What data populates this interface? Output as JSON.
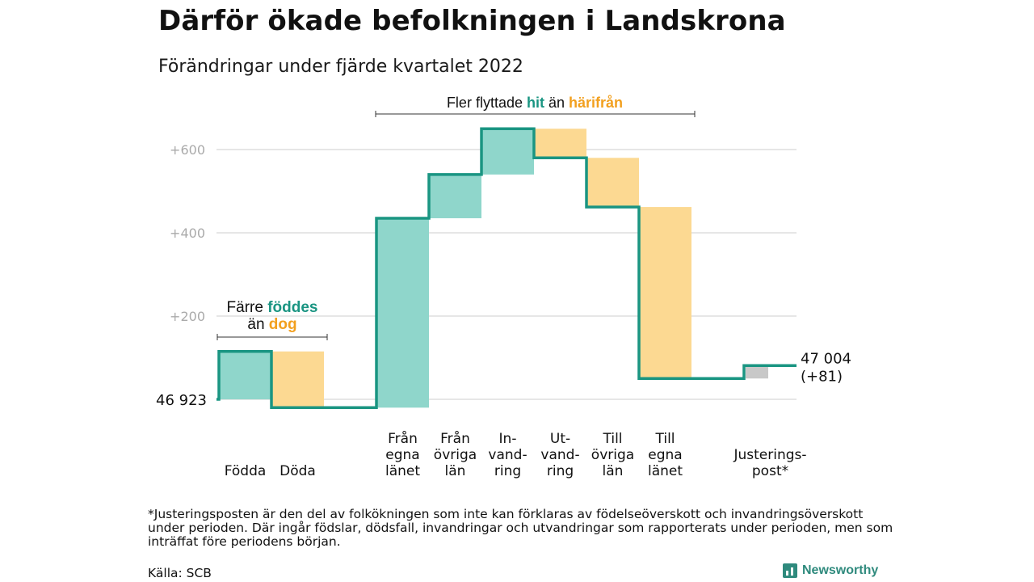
{
  "title": "Därför ökade befolkningen i Landskrona",
  "subtitle": "Förändringar under fjärde kvartalet 2022",
  "footnote": "*Justeringsposten är den del av folkökningen som inte kan förklaras av födelseöverskott och invandringsöverskott under perioden. Där ingår födslar, dödsfall, invandringar och utvandringar som rapporterats under perioden, men som inträffat före periodens början.",
  "source": "Källa: SCB",
  "brand": "Newsworthy",
  "colors": {
    "increase": "#8fd6cb",
    "decrease": "#fcd992",
    "adjustment": "#c8c8c8",
    "line": "#1a9582",
    "teal_text": "#1a9582",
    "orange_text": "#f2a01f",
    "grid": "#dddddd",
    "tick": "#aaaaaa"
  },
  "annotations": {
    "births": {
      "line1_pre": "Färre ",
      "line1_hl": "föddes",
      "line2_pre": "än ",
      "line2_hl": "dog"
    },
    "migration": {
      "pre": "Fler flyttade ",
      "hl1": "hit",
      "mid": " än ",
      "hl2": "härifrån"
    }
  },
  "chart_data": {
    "type": "waterfall",
    "start_value": 0,
    "start_label": "46 923",
    "end_label": "47 004",
    "end_change": "(+81)",
    "yticks": [
      {
        "value": 200,
        "label": "+200"
      },
      {
        "value": 400,
        "label": "+400"
      },
      {
        "value": 600,
        "label": "+600"
      }
    ],
    "ylim": [
      -25,
      650
    ],
    "grid": true,
    "steps": [
      {
        "label": [
          "Födda"
        ],
        "delta": 115,
        "kind": "increase"
      },
      {
        "label": [
          "Döda"
        ],
        "delta": -135,
        "kind": "decrease"
      },
      {
        "label": [
          "Från",
          "egna",
          "länet"
        ],
        "delta": 455,
        "kind": "increase",
        "gap_before": true
      },
      {
        "label": [
          "Från",
          "övriga",
          "län"
        ],
        "delta": 105,
        "kind": "increase"
      },
      {
        "label": [
          "In-",
          "vand-",
          "ring"
        ],
        "delta": 110,
        "kind": "increase"
      },
      {
        "label": [
          "Ut-",
          "vand-",
          "ring"
        ],
        "delta": -70,
        "kind": "decrease"
      },
      {
        "label": [
          "Till",
          "övriga",
          "län"
        ],
        "delta": -118,
        "kind": "decrease"
      },
      {
        "label": [
          "Till",
          "egna",
          "länet"
        ],
        "delta": -412,
        "kind": "decrease"
      },
      {
        "label": [
          "Justerings-",
          "post*"
        ],
        "delta": 31,
        "kind": "adjustment",
        "gap_before": true
      }
    ]
  }
}
